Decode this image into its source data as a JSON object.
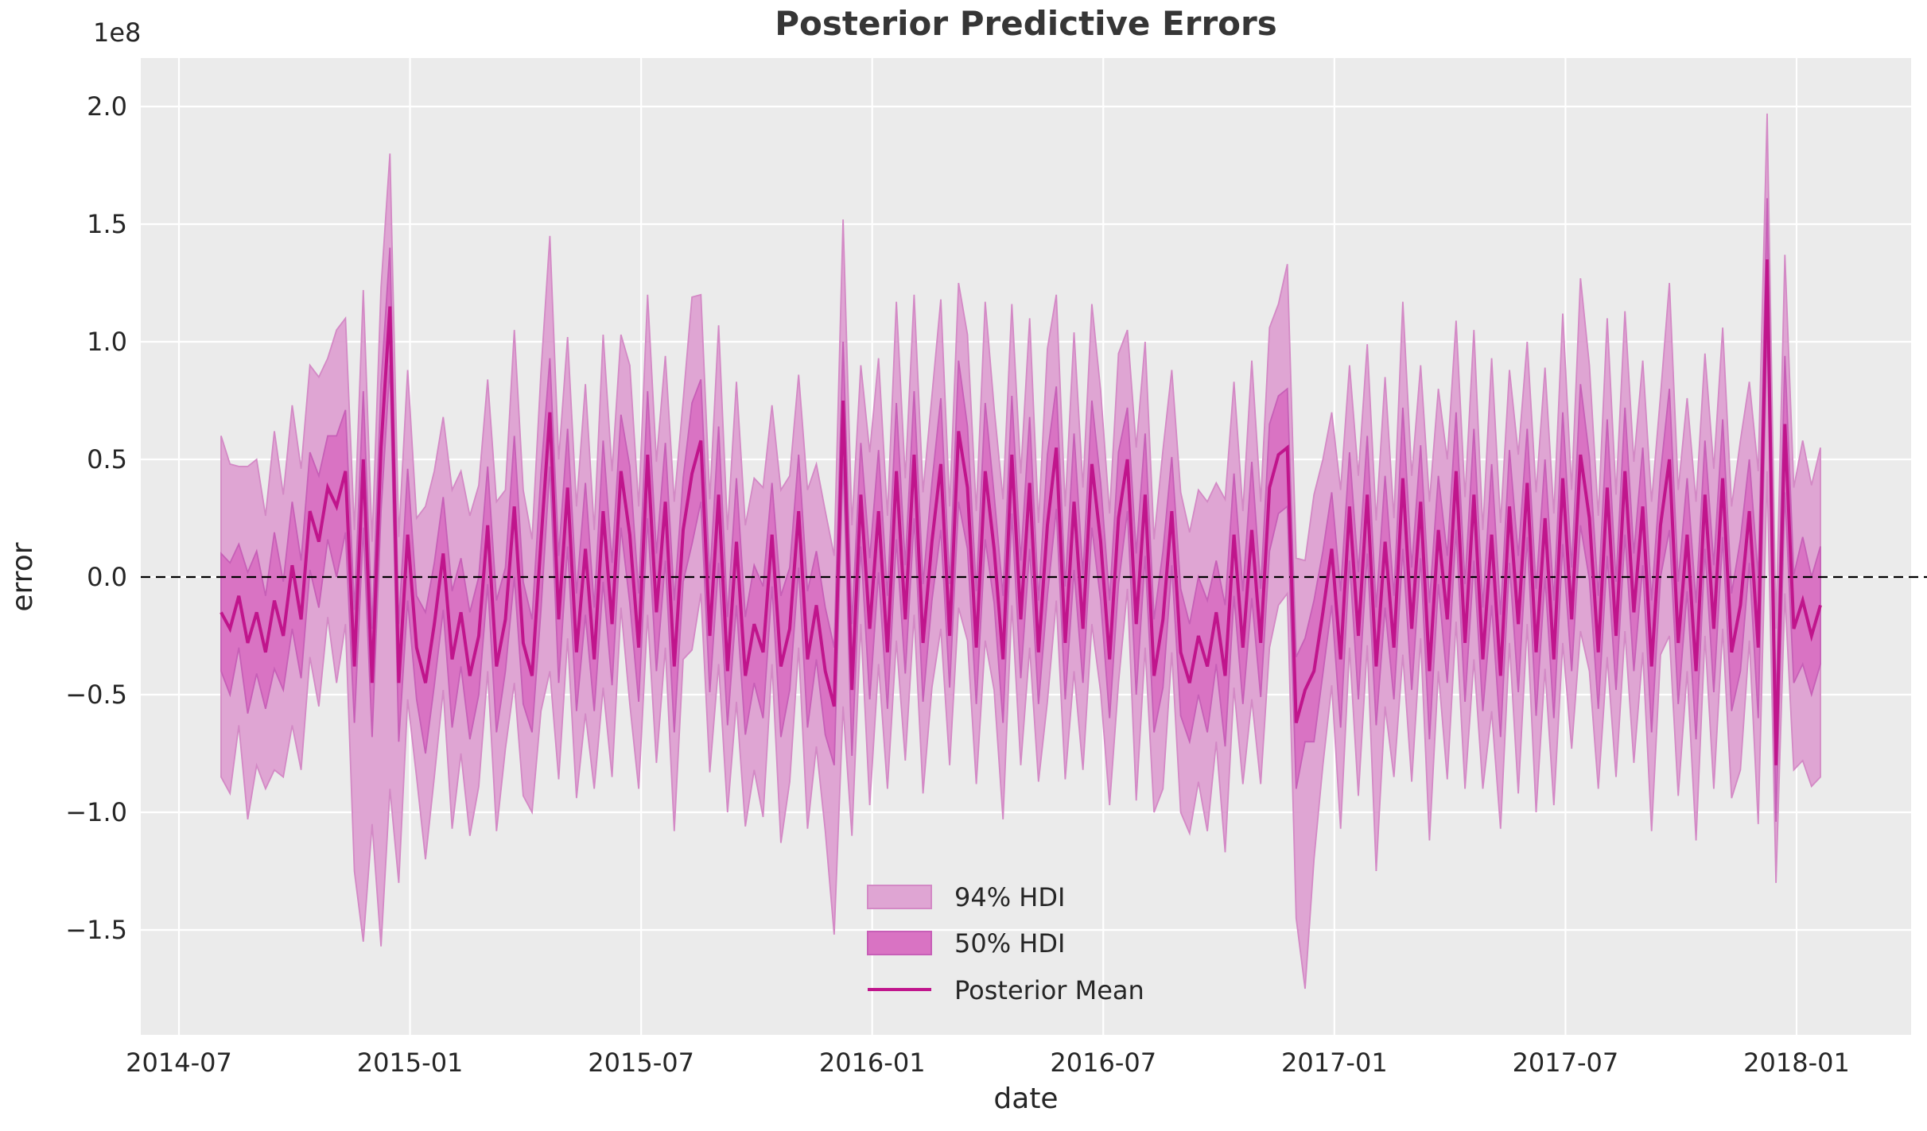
{
  "title": "Posterior Predictive Errors",
  "axes": {
    "xlabel": "date",
    "ylabel": "error",
    "offset_text": "1e8",
    "x_tick_labels": [
      "2014-07",
      "2015-01",
      "2015-07",
      "2016-01",
      "2016-07",
      "2017-01",
      "2017-07",
      "2018-01"
    ],
    "y_tick_labels": [
      "2.0",
      "1.5",
      "1.0",
      "0.5",
      "0.0",
      "−0.5",
      "−1.0",
      "−1.5"
    ],
    "y_tick_values": [
      2.0,
      1.5,
      1.0,
      0.5,
      0.0,
      -0.5,
      -1.0,
      -1.5
    ],
    "grid": "on",
    "zero_line_value": 0
  },
  "legend": {
    "position": "lower-center",
    "items": [
      {
        "label": "94% HDI",
        "type": "band",
        "color": "#dfa5d3"
      },
      {
        "label": "50% HDI",
        "type": "band",
        "color": "#d973c3"
      },
      {
        "label": "Posterior Mean",
        "type": "line",
        "color": "#c0158c"
      }
    ]
  },
  "colors": {
    "figure_bg": "#ffffff",
    "axes_bg": "#ebebeb",
    "grid": "#ffffff",
    "band94_fill": "#dfa5d3",
    "band94_edge": "#d389c5",
    "band50_fill": "#d973c3",
    "band50_edge": "#c75fb7",
    "mean_line": "#c0158c",
    "zero_line": "#000000",
    "text": "#262626"
  },
  "chart_data": {
    "type": "line",
    "title": "Posterior Predictive Errors",
    "xlabel": "date",
    "ylabel": "error",
    "unit": "1e8",
    "ylim_e8": [
      -1.95,
      2.21
    ],
    "x_start_date": "2014-08-03",
    "x_step_days": 7,
    "n_points": 181,
    "mean": [
      -0.15,
      -0.22,
      -0.08,
      -0.28,
      -0.15,
      -0.32,
      -0.1,
      -0.25,
      0.05,
      -0.18,
      0.28,
      0.15,
      0.38,
      0.3,
      0.45,
      -0.38,
      0.5,
      -0.45,
      0.55,
      1.15,
      -0.45,
      0.18,
      -0.3,
      -0.45,
      -0.2,
      0.1,
      -0.35,
      -0.15,
      -0.42,
      -0.25,
      0.22,
      -0.38,
      -0.18,
      0.3,
      -0.28,
      -0.42,
      0.15,
      0.7,
      -0.18,
      0.38,
      -0.32,
      0.12,
      -0.35,
      0.28,
      -0.2,
      0.45,
      0.18,
      -0.3,
      0.52,
      -0.15,
      0.32,
      -0.38,
      0.2,
      0.44,
      0.58,
      -0.25,
      0.35,
      -0.4,
      0.15,
      -0.42,
      -0.2,
      -0.32,
      0.18,
      -0.38,
      -0.22,
      0.28,
      -0.35,
      -0.12,
      -0.4,
      -0.55,
      0.75,
      -0.48,
      0.35,
      -0.22,
      0.28,
      -0.32,
      0.45,
      -0.18,
      0.52,
      -0.28,
      0.15,
      0.48,
      -0.25,
      0.62,
      0.38,
      -0.3,
      0.45,
      0.12,
      -0.35,
      0.52,
      -0.18,
      0.4,
      -0.32,
      0.22,
      0.55,
      -0.28,
      0.32,
      -0.22,
      0.48,
      0.15,
      -0.35,
      0.25,
      0.5,
      -0.2,
      0.35,
      -0.42,
      -0.18,
      0.28,
      -0.32,
      -0.45,
      -0.25,
      -0.38,
      -0.15,
      -0.42,
      0.18,
      -0.3,
      0.2,
      -0.28,
      0.38,
      0.52,
      0.55,
      -0.62,
      -0.48,
      -0.4,
      -0.15,
      0.12,
      -0.35,
      0.3,
      -0.25,
      0.35,
      -0.38,
      0.15,
      -0.3,
      0.42,
      -0.22,
      0.32,
      -0.4,
      0.2,
      -0.18,
      0.45,
      -0.28,
      0.35,
      -0.35,
      0.18,
      -0.42,
      0.3,
      -0.2,
      0.4,
      -0.32,
      0.25,
      -0.35,
      0.42,
      -0.18,
      0.52,
      0.25,
      -0.32,
      0.38,
      -0.25,
      0.45,
      -0.15,
      0.3,
      -0.38,
      0.22,
      0.5,
      -0.28,
      0.18,
      -0.4,
      0.35,
      -0.22,
      0.42,
      -0.32,
      -0.12,
      0.28,
      -0.3,
      1.35,
      -0.8,
      0.65,
      -0.22,
      -0.1,
      -0.25,
      -0.12
    ],
    "hdi50_lower": [
      -0.4,
      -0.5,
      -0.3,
      -0.58,
      -0.41,
      -0.56,
      -0.39,
      -0.48,
      -0.22,
      -0.43,
      0.03,
      -0.13,
      0.16,
      0.0,
      0.19,
      -0.62,
      0.21,
      -0.68,
      0.28,
      0.9,
      -0.7,
      -0.1,
      -0.52,
      -0.75,
      -0.46,
      -0.14,
      -0.64,
      -0.38,
      -0.69,
      -0.5,
      -0.03,
      -0.66,
      -0.4,
      0.0,
      -0.54,
      -0.66,
      -0.14,
      0.47,
      -0.45,
      0.13,
      -0.57,
      -0.16,
      -0.57,
      -0.02,
      -0.46,
      0.21,
      -0.11,
      -0.53,
      0.25,
      -0.4,
      0.07,
      -0.66,
      -0.02,
      0.14,
      0.32,
      -0.49,
      0.06,
      -0.63,
      -0.12,
      -0.67,
      -0.45,
      -0.6,
      -0.04,
      -0.68,
      -0.48,
      0.04,
      -0.64,
      -0.35,
      -0.67,
      -0.8,
      0.5,
      -0.76,
      0.13,
      -0.52,
      0.02,
      -0.56,
      0.16,
      -0.41,
      0.25,
      -0.53,
      -0.1,
      0.2,
      -0.47,
      0.32,
      0.12,
      -0.54,
      0.16,
      -0.11,
      -0.62,
      0.27,
      -0.43,
      0.12,
      -0.54,
      -0.08,
      0.29,
      -0.52,
      0.03,
      -0.45,
      0.21,
      -0.1,
      -0.6,
      -0.03,
      0.28,
      -0.5,
      0.09,
      -0.66,
      -0.47,
      0.05,
      -0.59,
      -0.7,
      -0.5,
      -0.66,
      -0.37,
      -0.72,
      -0.08,
      -0.54,
      -0.09,
      -0.51,
      0.11,
      0.27,
      0.3,
      -0.9,
      -0.7,
      -0.7,
      -0.41,
      -0.12,
      -0.64,
      0.07,
      -0.52,
      0.1,
      -0.63,
      -0.13,
      -0.52,
      0.12,
      -0.48,
      0.08,
      -0.69,
      -0.03,
      -0.45,
      0.2,
      -0.53,
      0.07,
      -0.57,
      -0.12,
      -0.68,
      0.06,
      -0.49,
      0.17,
      -0.59,
      0.0,
      -0.6,
      0.14,
      -0.4,
      0.22,
      -0.01,
      -0.56,
      0.09,
      -0.48,
      0.18,
      -0.4,
      0.05,
      -0.66,
      0.0,
      0.2,
      -0.54,
      -0.06,
      -0.69,
      0.12,
      -0.49,
      0.17,
      -0.57,
      -0.4,
      0.06,
      -0.6,
      1.09,
      -1.04,
      0.36,
      -0.45,
      -0.37,
      -0.5,
      -0.37
    ],
    "hdi50_upper": [
      0.1,
      0.06,
      0.14,
      0.02,
      0.11,
      -0.08,
      0.19,
      -0.02,
      0.32,
      0.07,
      0.53,
      0.43,
      0.6,
      0.6,
      0.71,
      -0.14,
      0.79,
      -0.22,
      0.82,
      1.4,
      -0.2,
      0.46,
      -0.08,
      -0.15,
      0.06,
      0.34,
      -0.06,
      0.08,
      -0.15,
      0.0,
      0.47,
      -0.1,
      0.04,
      0.6,
      -0.02,
      -0.18,
      0.44,
      0.93,
      0.09,
      0.63,
      -0.07,
      0.4,
      -0.13,
      0.58,
      0.06,
      0.69,
      0.47,
      -0.07,
      0.79,
      0.1,
      0.57,
      -0.1,
      0.42,
      0.74,
      0.84,
      -0.01,
      0.64,
      -0.17,
      0.42,
      -0.17,
      0.05,
      -0.04,
      0.4,
      -0.08,
      0.04,
      0.52,
      -0.06,
      0.11,
      -0.13,
      -0.3,
      1.0,
      -0.2,
      0.57,
      0.08,
      0.54,
      -0.08,
      0.74,
      0.05,
      0.79,
      -0.03,
      0.4,
      0.76,
      -0.03,
      0.92,
      0.64,
      -0.06,
      0.74,
      0.35,
      -0.08,
      0.77,
      0.07,
      0.68,
      -0.1,
      0.52,
      0.81,
      -0.04,
      0.61,
      0.01,
      0.75,
      0.4,
      -0.1,
      0.53,
      0.72,
      0.1,
      0.61,
      -0.18,
      0.11,
      0.51,
      -0.05,
      -0.2,
      0.0,
      -0.1,
      0.07,
      -0.12,
      0.44,
      -0.06,
      0.49,
      -0.05,
      0.65,
      0.77,
      0.8,
      -0.34,
      -0.26,
      -0.1,
      0.11,
      0.36,
      -0.06,
      0.53,
      0.02,
      0.6,
      -0.13,
      0.43,
      -0.08,
      0.72,
      0.04,
      0.56,
      -0.11,
      0.43,
      0.09,
      0.7,
      -0.03,
      0.63,
      -0.13,
      0.48,
      -0.16,
      0.54,
      0.09,
      0.63,
      -0.05,
      0.5,
      -0.1,
      0.7,
      0.04,
      0.82,
      0.51,
      -0.08,
      0.67,
      -0.02,
      0.72,
      0.1,
      0.55,
      -0.1,
      0.44,
      0.8,
      -0.02,
      0.42,
      -0.11,
      0.58,
      0.05,
      0.67,
      -0.07,
      0.16,
      0.5,
      0.0,
      1.61,
      -0.56,
      0.94,
      0.01,
      0.17,
      0.0,
      0.13
    ],
    "hdi94_lower": [
      -0.85,
      -0.92,
      -0.63,
      -1.03,
      -0.8,
      -0.9,
      -0.82,
      -0.85,
      -0.63,
      -0.82,
      -0.34,
      -0.55,
      -0.17,
      -0.45,
      -0.2,
      -1.25,
      -1.55,
      -1.05,
      -1.57,
      -0.9,
      -1.3,
      -0.52,
      -0.85,
      -1.2,
      -0.85,
      -0.48,
      -1.07,
      -0.75,
      -1.1,
      -0.89,
      -0.4,
      -1.08,
      -0.73,
      -0.45,
      -0.93,
      -1.0,
      -0.57,
      -0.4,
      -0.86,
      -0.26,
      -0.94,
      -0.58,
      -0.9,
      -0.47,
      -0.85,
      -0.13,
      -0.54,
      -0.9,
      -0.16,
      -0.79,
      -0.3,
      -1.08,
      -0.35,
      -0.31,
      -0.07,
      -0.83,
      -0.37,
      -1.0,
      -0.53,
      -1.06,
      -0.82,
      -1.02,
      -0.37,
      -1.13,
      -0.87,
      -0.3,
      -1.07,
      -0.72,
      -1.08,
      -1.52,
      -0.55,
      -1.1,
      -0.2,
      -0.97,
      -0.37,
      -0.9,
      -0.27,
      -0.78,
      -0.16,
      -0.92,
      -0.47,
      -0.22,
      -0.8,
      -0.13,
      -0.27,
      -0.88,
      -0.27,
      -0.48,
      -1.03,
      -0.12,
      -0.8,
      -0.3,
      -0.87,
      -0.53,
      -0.1,
      -0.86,
      -0.4,
      -0.82,
      -0.2,
      -0.49,
      -0.97,
      -0.45,
      -0.05,
      -0.95,
      -0.3,
      -1.0,
      -0.9,
      -0.32,
      -1.0,
      -1.09,
      -0.87,
      -1.08,
      -0.7,
      -1.17,
      -0.47,
      -0.88,
      -0.52,
      -0.88,
      -0.3,
      -0.12,
      -0.07,
      -1.45,
      -1.75,
      -1.2,
      -0.8,
      -0.46,
      -1.07,
      -0.3,
      -0.93,
      -0.29,
      -1.25,
      -0.55,
      -0.85,
      -0.33,
      -0.87,
      -0.26,
      -1.12,
      -0.4,
      -0.86,
      -0.19,
      -0.9,
      -0.35,
      -0.9,
      -0.57,
      -1.07,
      -0.28,
      -0.92,
      -0.2,
      -1.0,
      -0.39,
      -0.97,
      -0.28,
      -0.73,
      -0.23,
      -0.4,
      -0.9,
      -0.34,
      -0.85,
      -0.23,
      -0.79,
      -0.32,
      -1.08,
      -0.33,
      -0.25,
      -0.93,
      -0.4,
      -1.12,
      -0.25,
      -0.9,
      -0.22,
      -0.94,
      -0.82,
      -0.27,
      -1.05,
      0.45,
      -1.3,
      -0.07,
      -0.82,
      -0.78,
      -0.89,
      -0.85
    ],
    "hdi94_upper": [
      0.6,
      0.48,
      0.47,
      0.47,
      0.5,
      0.26,
      0.62,
      0.35,
      0.73,
      0.46,
      0.9,
      0.85,
      0.93,
      1.05,
      1.1,
      0.2,
      1.22,
      0.15,
      1.23,
      1.8,
      0.17,
      0.88,
      0.25,
      0.3,
      0.45,
      0.68,
      0.37,
      0.45,
      0.26,
      0.39,
      0.84,
      0.32,
      0.37,
      1.05,
      0.37,
      0.16,
      0.87,
      1.45,
      0.5,
      1.02,
      0.3,
      0.82,
      0.2,
      1.03,
      0.45,
      1.03,
      0.9,
      0.3,
      1.2,
      0.49,
      0.94,
      0.32,
      0.75,
      1.19,
      1.2,
      0.33,
      1.07,
      0.2,
      0.83,
      0.22,
      0.42,
      0.38,
      0.73,
      0.37,
      0.43,
      0.86,
      0.37,
      0.48,
      0.28,
      0.09,
      1.52,
      0.22,
      0.9,
      0.53,
      0.93,
      0.26,
      1.17,
      0.42,
      1.2,
      0.36,
      0.77,
      1.18,
      0.3,
      1.25,
      1.03,
      0.28,
      1.17,
      0.72,
      0.33,
      1.16,
      0.44,
      1.1,
      0.23,
      0.97,
      1.2,
      0.3,
      1.04,
      0.38,
      1.16,
      0.79,
      0.27,
      0.95,
      1.05,
      0.55,
      1.0,
      0.16,
      0.54,
      0.88,
      0.36,
      0.19,
      0.37,
      0.32,
      0.4,
      0.33,
      0.83,
      0.28,
      0.92,
      0.32,
      1.06,
      1.16,
      1.33,
      0.08,
      0.07,
      0.35,
      0.5,
      0.7,
      0.37,
      0.9,
      0.43,
      0.99,
      0.24,
      0.85,
      0.25,
      1.17,
      0.43,
      0.9,
      0.32,
      0.8,
      0.5,
      1.09,
      0.34,
      1.05,
      0.2,
      0.93,
      0.23,
      0.88,
      0.52,
      1.0,
      0.36,
      0.89,
      0.27,
      1.12,
      0.37,
      1.27,
      0.9,
      0.26,
      1.1,
      0.35,
      1.13,
      0.49,
      0.92,
      0.32,
      0.77,
      1.25,
      0.37,
      0.76,
      0.32,
      0.95,
      0.46,
      1.06,
      0.3,
      0.58,
      0.83,
      0.45,
      1.97,
      -0.22,
      1.37,
      0.38,
      0.58,
      0.39,
      0.55
    ]
  }
}
